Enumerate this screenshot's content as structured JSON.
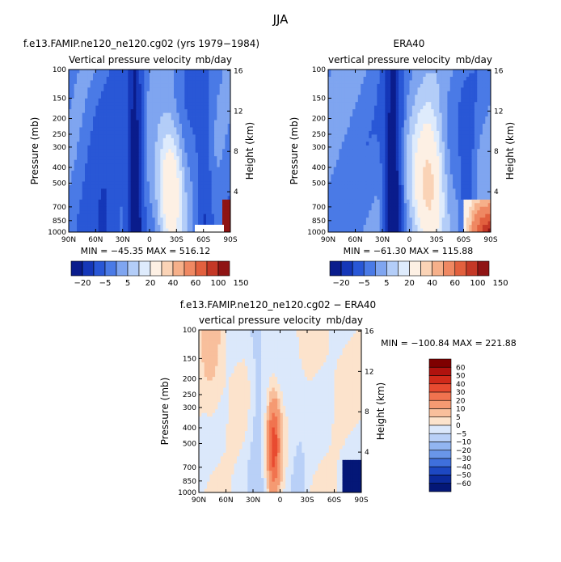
{
  "figure": {
    "title": "JJA"
  },
  "chart_data": [
    {
      "type": "heatmap",
      "title": "f.e13.FAMIP.ne120_ne120.cg02 (yrs 1979−1984)",
      "subtitle_left": "Vertical pressure velocity",
      "subtitle_right": "mb/day",
      "ylabel": "Pressure (mb)",
      "ylabel_right": "Height (km)",
      "x_ticks": [
        "90N",
        "60N",
        "30N",
        "0",
        "30S",
        "60S",
        "90S"
      ],
      "y_ticks": [
        "100",
        "150",
        "200",
        "250",
        "300",
        "400",
        "500",
        "700",
        "850",
        "1000"
      ],
      "y_ticks_right": [
        "16",
        "12",
        "8",
        "4"
      ],
      "min_label": "MIN = −45.35",
      "max_label": "MAX = 516.12",
      "colorbar_labels": [
        "−20",
        "−5",
        "5",
        "20",
        "40",
        "60",
        "100",
        "150"
      ],
      "colorbar_colors": [
        "#0a1c8c",
        "#1537b8",
        "#2957d6",
        "#4a7ae6",
        "#7fa5f0",
        "#b3cdf8",
        "#deebfc",
        "#fdf0e4",
        "#fad3b6",
        "#f6b08a",
        "#ef8862",
        "#e2603e",
        "#c43826",
        "#8f1414"
      ]
    },
    {
      "type": "heatmap",
      "title": "ERA40",
      "subtitle_left": "vertical pressure velocity",
      "subtitle_right": "mb/day",
      "ylabel": "Pressure (mb)",
      "ylabel_right": "Height (km)",
      "x_ticks": [
        "90N",
        "60N",
        "30N",
        "0",
        "30S",
        "60S",
        "90S"
      ],
      "y_ticks": [
        "100",
        "150",
        "200",
        "250",
        "300",
        "400",
        "500",
        "700",
        "850",
        "1000"
      ],
      "y_ticks_right": [
        "16",
        "12",
        "8",
        "4"
      ],
      "min_label": "MIN = −61.30",
      "max_label": "MAX = 115.88",
      "colorbar_labels": [
        "−20",
        "−5",
        "5",
        "20",
        "40",
        "60",
        "100",
        "150"
      ],
      "colorbar_colors": [
        "#0a1c8c",
        "#1537b8",
        "#2957d6",
        "#4a7ae6",
        "#7fa5f0",
        "#b3cdf8",
        "#deebfc",
        "#fdf0e4",
        "#fad3b6",
        "#f6b08a",
        "#ef8862",
        "#e2603e",
        "#c43826",
        "#8f1414"
      ]
    },
    {
      "type": "heatmap",
      "title": "f.e13.FAMIP.ne120_ne120.cg02 − ERA40",
      "subtitle_left": "vertical pressure velocity",
      "subtitle_right": "mb/day",
      "ylabel": "Pressure (mb)",
      "ylabel_right": "Height (km)",
      "x_ticks": [
        "90N",
        "60N",
        "30N",
        "0",
        "30S",
        "60S",
        "90S"
      ],
      "y_ticks": [
        "100",
        "150",
        "200",
        "250",
        "300",
        "400",
        "500",
        "700",
        "850",
        "1000"
      ],
      "y_ticks_right": [
        "16",
        "12",
        "8",
        "4"
      ],
      "min_label": "MIN = −100.84",
      "max_label": "MAX = 221.88",
      "colorbar_labels": [
        "60",
        "50",
        "40",
        "30",
        "20",
        "10",
        "5",
        "0",
        "−5",
        "−10",
        "−20",
        "−30",
        "−40",
        "−50",
        "−60"
      ],
      "colorbar_colors": [
        "#7f0000",
        "#b0120e",
        "#d12a1a",
        "#e84b30",
        "#f1734f",
        "#f59a72",
        "#f8bf9c",
        "#fce3cc",
        "#dbe8fb",
        "#b9d0f7",
        "#92b5f1",
        "#6996e9",
        "#3f6fdc",
        "#1d48c2",
        "#0b2a9c",
        "#041777"
      ]
    }
  ]
}
